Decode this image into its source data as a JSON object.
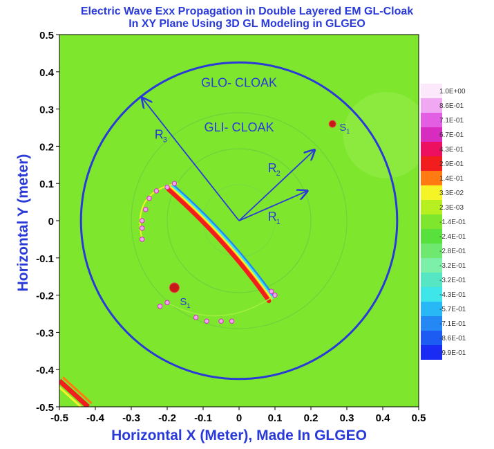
{
  "chart_data": {
    "type": "heatmap",
    "title": "Electric Wave Exx Propagation in Double Layered EM GL-Cloak",
    "subtitle": "In XY Plane Using 3D GL Modeling in GLGEO",
    "xlabel": "Horizontal X (Meter), Made In GLGEO",
    "ylabel": "Horizontal Y (meter)",
    "xlim": [
      -0.5,
      0.5
    ],
    "ylim": [
      -0.5,
      0.5
    ],
    "x_ticks": [
      "-0.5",
      "-0.4",
      "-0.3",
      "-0.2",
      "-0.1",
      "0",
      "0.1",
      "0.2",
      "0.3",
      "0.4",
      "0.5"
    ],
    "y_ticks": [
      "0.5",
      "0.4",
      "0.3",
      "0.2",
      "0.1",
      "0",
      "-0.1",
      "-0.2",
      "-0.3",
      "-0.4",
      "-0.5"
    ],
    "grid": false,
    "legend_position": "right",
    "background_color": "#7fe62e",
    "colorbar": [
      {
        "label": "1.0E+00",
        "color": "#fbe8fb"
      },
      {
        "label": "8.6E-01",
        "color": "#f0a8f2"
      },
      {
        "label": "7.1E-01",
        "color": "#e25ee3"
      },
      {
        "label": "6.7E-01",
        "color": "#d82cc0"
      },
      {
        "label": "4.3E-01",
        "color": "#ee1060"
      },
      {
        "label": "2.9E-01",
        "color": "#f21e1e"
      },
      {
        "label": "1.4E-01",
        "color": "#ff7a10"
      },
      {
        "label": "3.3E-02",
        "color": "#f4f426"
      },
      {
        "label": "2.3E-03",
        "color": "#b6f020"
      },
      {
        "label": "-1.4E-01",
        "color": "#7fe62e"
      },
      {
        "label": "-2.4E-01",
        "color": "#58e03c"
      },
      {
        "label": "-2.8E-01",
        "color": "#6ee86e"
      },
      {
        "label": "-3.2E-01",
        "color": "#7cf0a8"
      },
      {
        "label": "-3.2E-01",
        "color": "#56e6c4"
      },
      {
        "label": "-4.3E-01",
        "color": "#3ee6ea"
      },
      {
        "label": "-5.7E-01",
        "color": "#28b8f6"
      },
      {
        "label": "-7.1E-01",
        "color": "#2488f4"
      },
      {
        "label": "-8.6E-01",
        "color": "#1c5cf2"
      },
      {
        "label": "-9.9E-01",
        "color": "#1a2cf4"
      }
    ],
    "cloak_circles": [
      {
        "name": "GLO- CLOAK",
        "radius": 0.44,
        "color": "#2a3ad8"
      },
      {
        "name": "GLI- CLOAK",
        "radius": 0.2,
        "color": "#6bd43a"
      }
    ],
    "inner_ring_radius": 0.3,
    "core_radius": 0.1,
    "radius_labels": [
      {
        "text": "R",
        "sub": "3",
        "from": [
          0.0,
          0.0
        ],
        "to": [
          -0.27,
          0.33
        ]
      },
      {
        "text": "R",
        "sub": "2",
        "from": [
          0.0,
          0.0
        ],
        "to": [
          0.21,
          0.19
        ]
      },
      {
        "text": "R",
        "sub": "1",
        "from": [
          0.0,
          0.0
        ],
        "to": [
          0.19,
          0.08
        ]
      }
    ],
    "sources": [
      {
        "text": "S",
        "sub": "1",
        "x": 0.26,
        "y": 0.26,
        "color": "#c81818"
      },
      {
        "text": "S",
        "sub": "1",
        "x": -0.18,
        "y": -0.18,
        "color": "#c81818"
      }
    ],
    "wave_band": {
      "from": [
        -0.19,
        0.09
      ],
      "to": [
        0.09,
        -0.21
      ],
      "colors": [
        "#2488f4",
        "#3ee6ea",
        "#f4f426",
        "#ff7a10",
        "#f21e1e"
      ]
    },
    "corner_band": {
      "from": [
        -0.5,
        -0.43
      ],
      "to": [
        -0.42,
        -0.5
      ]
    },
    "pink_points": [
      [
        -0.27,
        -0.05
      ],
      [
        -0.27,
        -0.02
      ],
      [
        -0.27,
        0.0
      ],
      [
        -0.26,
        0.03
      ],
      [
        -0.25,
        0.06
      ],
      [
        -0.23,
        0.08
      ],
      [
        -0.2,
        0.09
      ],
      [
        -0.18,
        0.1
      ],
      [
        -0.22,
        -0.23
      ],
      [
        -0.2,
        -0.22
      ],
      [
        -0.12,
        -0.26
      ],
      [
        -0.09,
        -0.27
      ],
      [
        -0.05,
        -0.27
      ],
      [
        -0.02,
        -0.27
      ],
      [
        0.09,
        -0.19
      ],
      [
        0.1,
        -0.2
      ]
    ]
  }
}
